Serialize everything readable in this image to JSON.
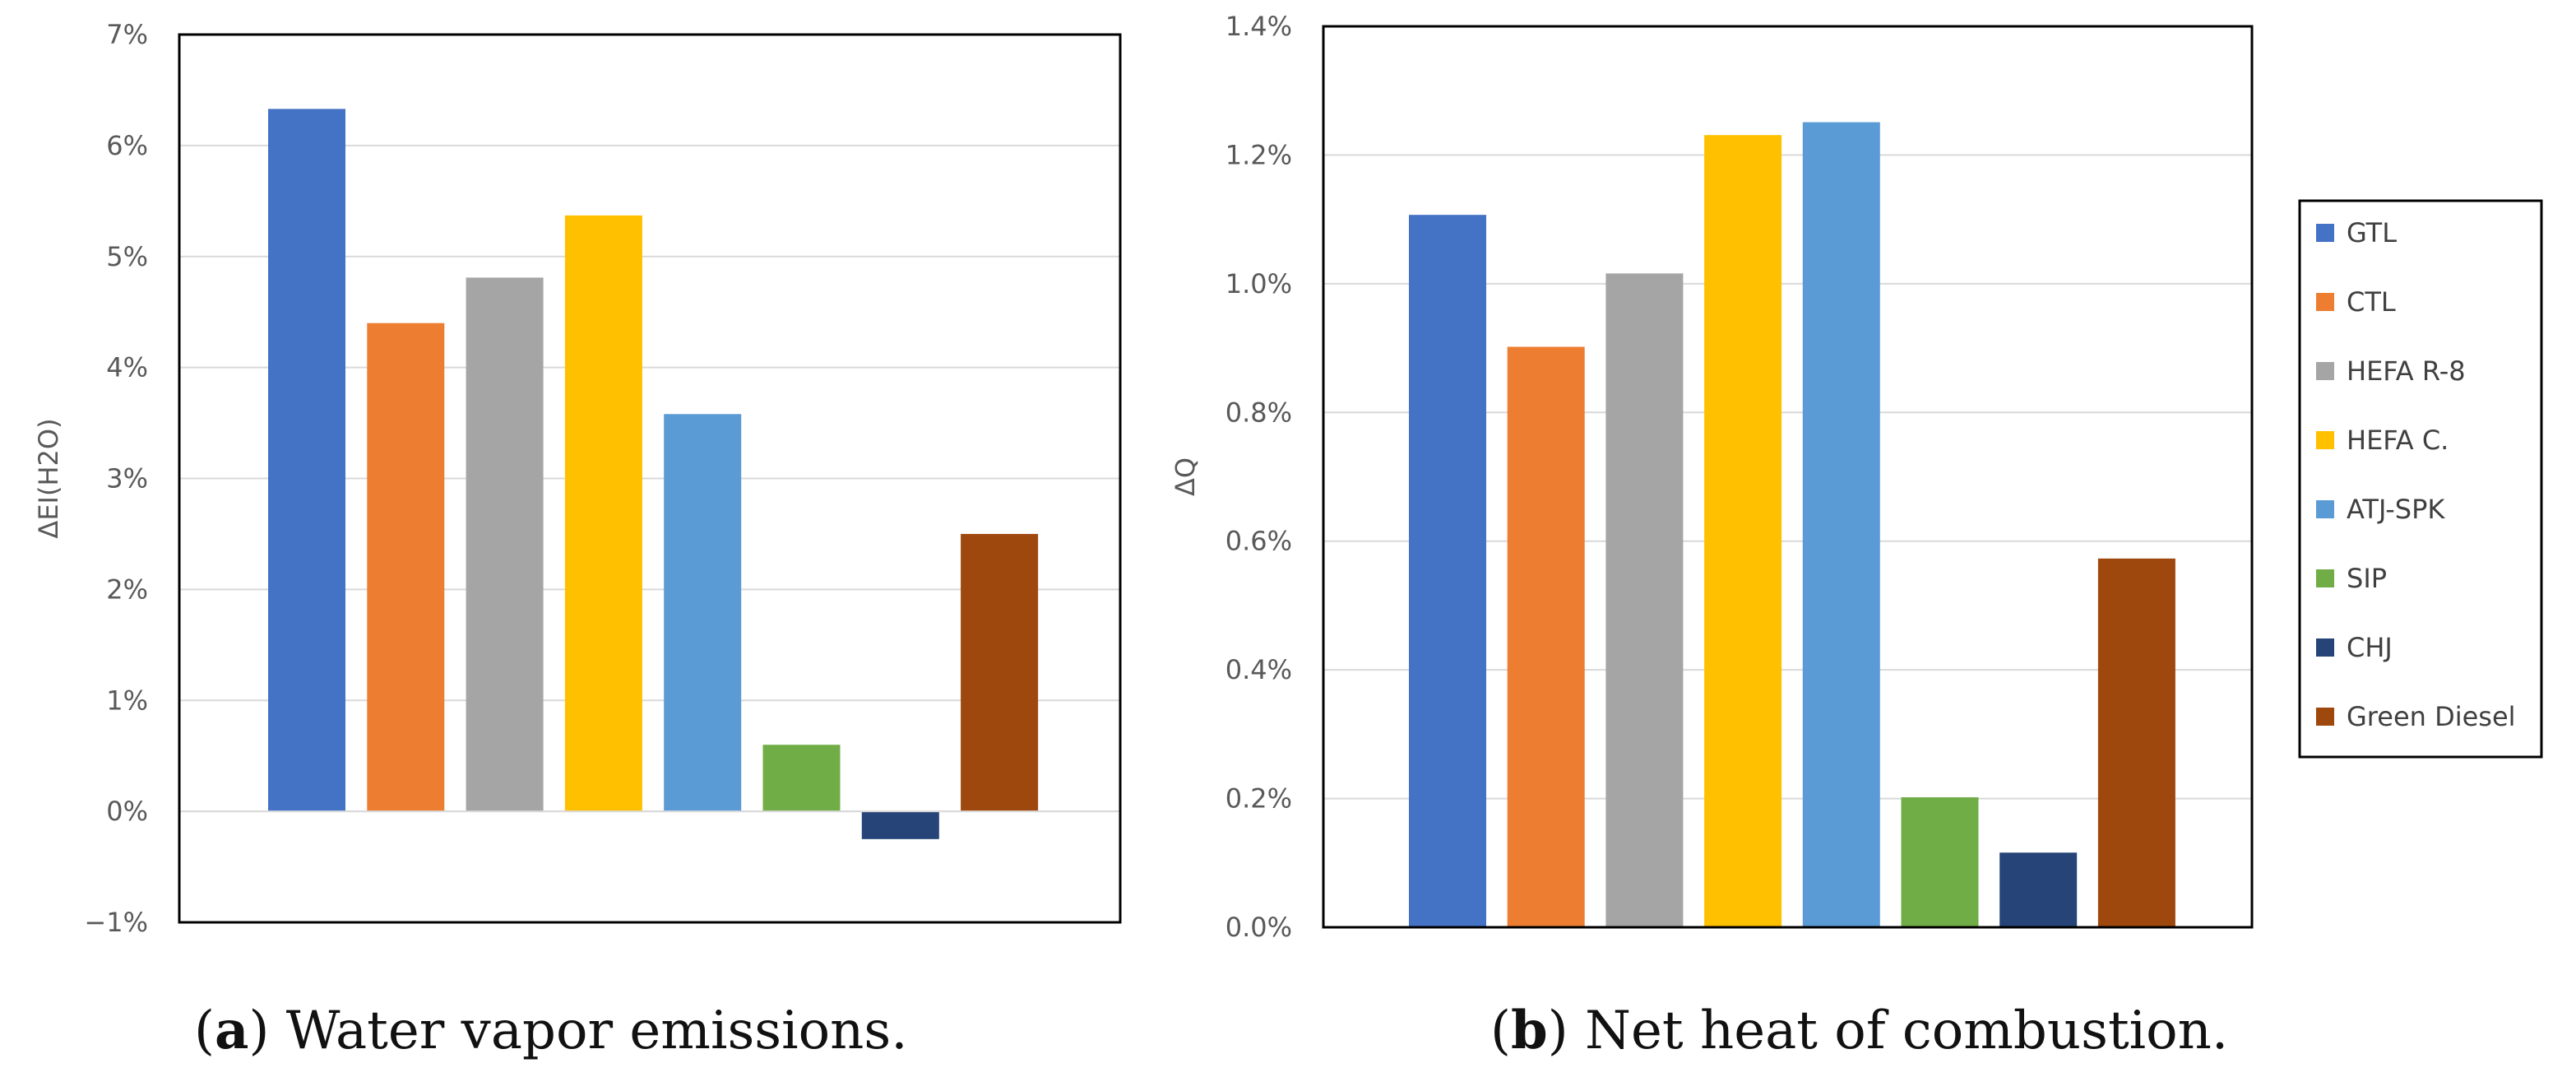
{
  "legend": [
    {
      "label": "GTL",
      "color": "#4472C4"
    },
    {
      "label": "CTL",
      "color": "#ED7D31"
    },
    {
      "label": "HEFA R-8",
      "color": "#A5A5A5"
    },
    {
      "label": "HEFA C.",
      "color": "#FFC000"
    },
    {
      "label": "ATJ-SPK",
      "color": "#5B9BD5"
    },
    {
      "label": "SIP",
      "color": "#70AD47"
    },
    {
      "label": "CHJ",
      "color": "#264478"
    },
    {
      "label": "Green Diesel",
      "color": "#9E480E"
    }
  ],
  "chart_data": [
    {
      "type": "bar",
      "id": "a",
      "ylabel": "ΔEI(H2O)",
      "categories": [
        "GTL",
        "CTL",
        "HEFA R-8",
        "HEFA C.",
        "ATJ-SPK",
        "SIP",
        "CHJ",
        "Green Diesel"
      ],
      "values": [
        6.33,
        4.4,
        4.81,
        5.37,
        3.58,
        0.6,
        -0.25,
        2.5
      ],
      "unit": "%",
      "ylim": [
        -1,
        7
      ],
      "yticks": [
        -1,
        0,
        1,
        2,
        3,
        4,
        5,
        6,
        7
      ],
      "ytick_labels": [
        "−1%",
        "0%",
        "1%",
        "2%",
        "3%",
        "4%",
        "5%",
        "6%",
        "7%"
      ],
      "grid": true,
      "caption_letter": "a",
      "caption_text": " Water vapor emissions."
    },
    {
      "type": "bar",
      "id": "b",
      "ylabel": "ΔQ",
      "categories": [
        "GTL",
        "CTL",
        "HEFA R-8",
        "HEFA C.",
        "ATJ-SPK",
        "SIP",
        "CHJ",
        "Green Diesel"
      ],
      "values": [
        1.107,
        0.902,
        1.016,
        1.231,
        1.251,
        0.202,
        0.116,
        0.573
      ],
      "unit": "%",
      "ylim": [
        0,
        1.4
      ],
      "yticks": [
        0,
        0.2,
        0.4,
        0.6,
        0.8,
        1.0,
        1.2,
        1.4
      ],
      "ytick_labels": [
        "0.0%",
        "0.2%",
        "0.4%",
        "0.6%",
        "0.8%",
        "1.0%",
        "1.2%",
        "1.4%"
      ],
      "grid": true,
      "legend_position": "right",
      "caption_letter": "b",
      "caption_text": " Net heat of combustion."
    }
  ]
}
